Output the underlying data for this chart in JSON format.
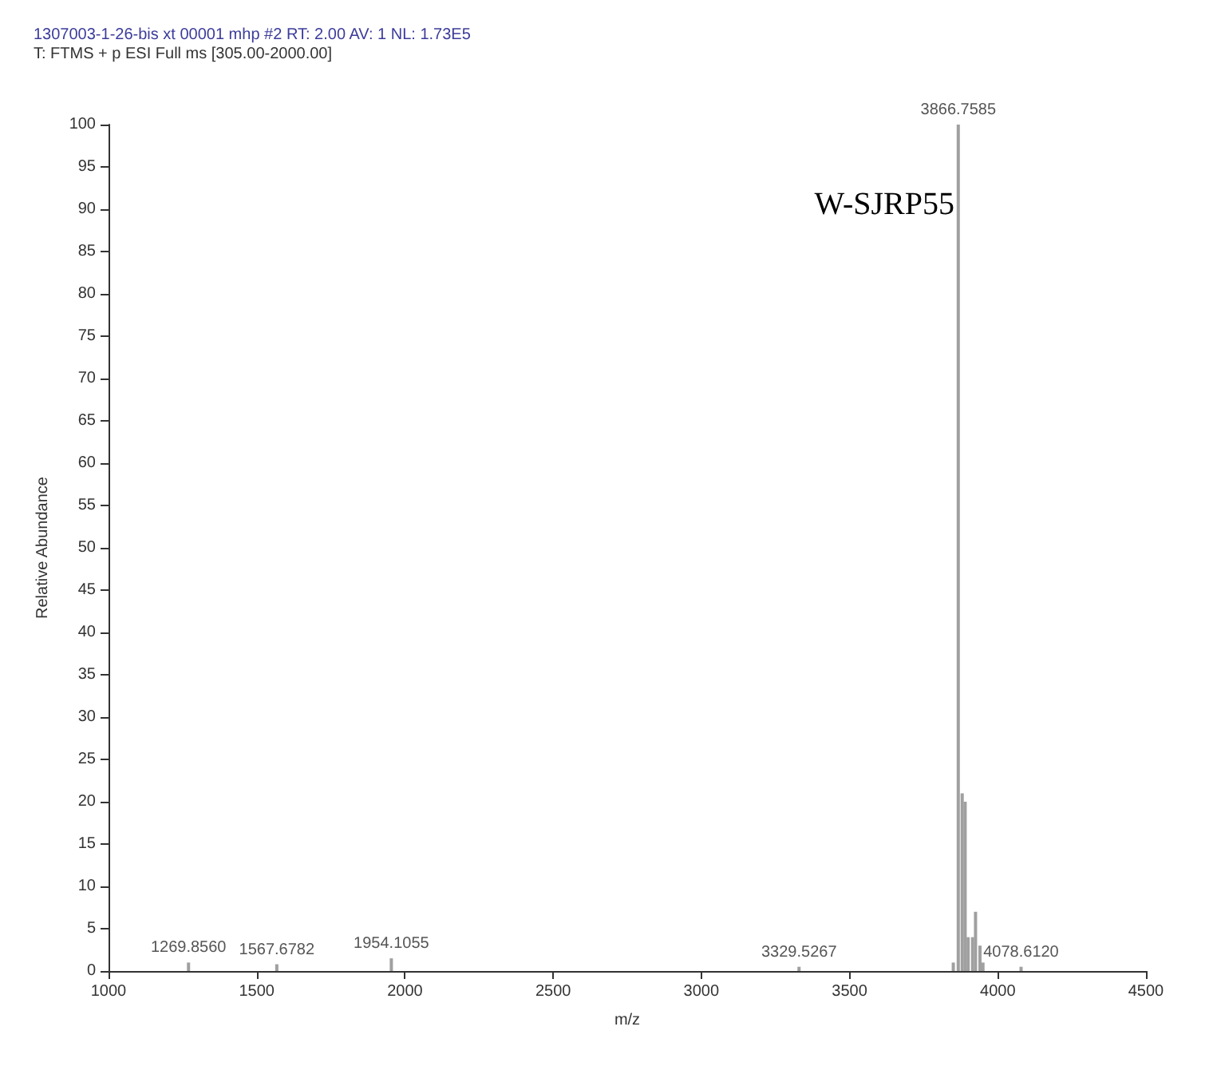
{
  "chart_data": {
    "type": "bar",
    "title": "1307003-1-26-bis xt 00001 mhp #2 RT: 2.00 AV: 1 NL: 1.73E5",
    "subtitle": "T: FTMS + p ESI Full ms [305.00-2000.00]",
    "xlabel": "m/z",
    "ylabel": "Relative Abundance",
    "x": [
      1269.856,
      1567.6782,
      1954.1055,
      3329.5267,
      3850,
      3866.7585,
      3880,
      3890,
      3900,
      3915,
      3925,
      3940,
      3950,
      4078.612
    ],
    "values": [
      1,
      0.8,
      1.5,
      0.5,
      1,
      100,
      21,
      20,
      4,
      4,
      7,
      3,
      1,
      0.5
    ],
    "color": "#a0a0a0",
    "xlim": [
      1000,
      4500
    ],
    "xticks": [
      1000,
      1500,
      2000,
      2500,
      3000,
      3500,
      4000,
      4500
    ],
    "ylim": [
      0,
      100
    ],
    "yticks": [
      0,
      5,
      10,
      15,
      20,
      25,
      30,
      35,
      40,
      45,
      50,
      55,
      60,
      65,
      70,
      75,
      80,
      85,
      90,
      95,
      100
    ],
    "grid": false,
    "annotations": [
      {
        "text": "3866.7585",
        "x": 3866.7585,
        "y": 100
      },
      {
        "text": "1269.8560",
        "x": 1269.856,
        "y": 1
      },
      {
        "text": "1567.6782",
        "x": 1567.6782,
        "y": 0.8
      },
      {
        "text": "1954.1055",
        "x": 1954.1055,
        "y": 1.5
      },
      {
        "text": "3329.5267",
        "x": 3329.5267,
        "y": 0.5
      },
      {
        "text": "4078.6120",
        "x": 4078.612,
        "y": 0.5
      },
      "W-SJRP55"
    ]
  }
}
